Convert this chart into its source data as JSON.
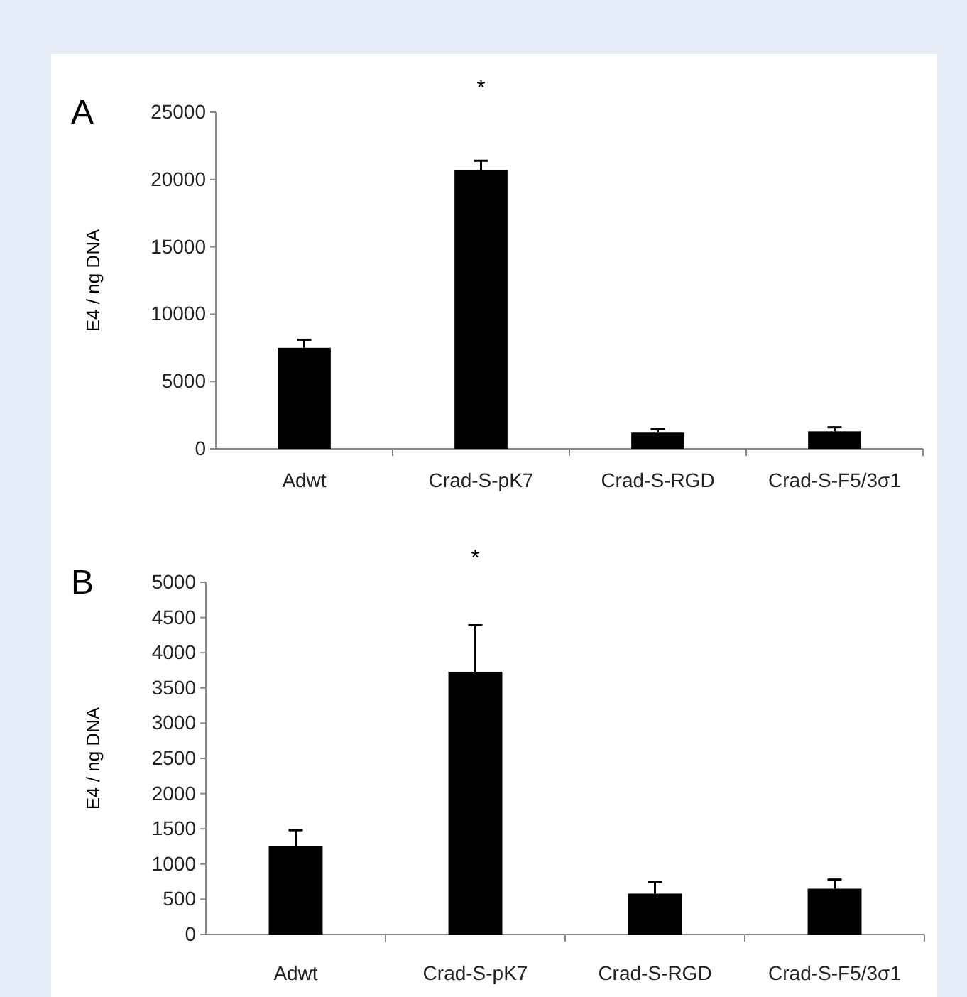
{
  "chart_data": [
    {
      "type": "bar",
      "title": "A",
      "ylabel": "E4 / ng DNA",
      "categories": [
        "Adwt",
        "Crad-S-pK7",
        "Crad-S-RGD",
        "Crad-S-F5/3σ1"
      ],
      "values": [
        7500,
        20700,
        1200,
        1300
      ],
      "errors": [
        [
          7500,
          8100
        ],
        [
          20700,
          21400
        ],
        [
          1200,
          1450
        ],
        [
          1300,
          1600
        ]
      ],
      "color": "#000000",
      "ylim": [
        0,
        25000
      ],
      "yticks": [
        0,
        5000,
        10000,
        15000,
        20000,
        25000
      ],
      "annotations": [
        "*"
      ]
    },
    {
      "type": "bar",
      "title": "B",
      "ylabel": "E4 / ng DNA",
      "categories": [
        "Adwt",
        "Crad-S-pK7",
        "Crad-S-RGD",
        "Crad-S-F5/3σ1"
      ],
      "values": [
        1250,
        3730,
        580,
        650
      ],
      "errors": [
        [
          1250,
          1480
        ],
        [
          3730,
          4390
        ],
        [
          580,
          750
        ],
        [
          650,
          780
        ]
      ],
      "color": "#000000",
      "ylim": [
        0,
        5000
      ],
      "yticks": [
        0,
        500,
        1000,
        1500,
        2000,
        2500,
        3000,
        3500,
        4000,
        4500,
        5000
      ],
      "annotations": [
        "*"
      ]
    }
  ]
}
